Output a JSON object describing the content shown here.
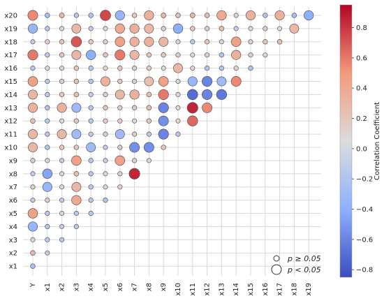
{
  "chart_data": {
    "type": "bubble-correlation-matrix",
    "variables_x": [
      "Y",
      "x1",
      "x2",
      "x3",
      "x4",
      "x5",
      "x6",
      "x7",
      "x8",
      "x9",
      "x10",
      "x11",
      "x12",
      "x13",
      "x14",
      "x15",
      "x16",
      "x17",
      "x18",
      "x19"
    ],
    "variables_y": [
      "x20",
      "x19",
      "x18",
      "x17",
      "x16",
      "x15",
      "x14",
      "x13",
      "x12",
      "x11",
      "x10",
      "x9",
      "x8",
      "x7",
      "x6",
      "x5",
      "x4",
      "x3",
      "x2",
      "x1"
    ],
    "colorbar": {
      "label": "Correlation Coefficient",
      "range": [
        -0.85,
        0.95
      ],
      "ticks": [
        0.8,
        0.6,
        0.4,
        0.2,
        0.0,
        -0.2,
        -0.4,
        -0.6,
        -0.8
      ],
      "tick_labels": [
        "0.8",
        "0.6",
        "0.4",
        "0.2",
        "0.0",
        "−0.2",
        "−0.4",
        "−0.6",
        "−0.8"
      ],
      "colormap": "coolwarm"
    },
    "legend": {
      "position": "bottom-right",
      "items": [
        {
          "label": "p ≥ 0.05",
          "size": "small"
        },
        {
          "label": "p < 0.05",
          "size": "large"
        }
      ]
    },
    "rows": {
      "x20": [
        [
          0.55,
          1
        ],
        [
          -0.25,
          0
        ],
        [
          0.3,
          0
        ],
        [
          -0.15,
          0
        ],
        [
          -0.2,
          0
        ],
        [
          0.75,
          1
        ],
        [
          -0.35,
          1
        ],
        [
          0.2,
          0
        ],
        [
          0.35,
          1
        ],
        [
          0.3,
          0
        ],
        [
          0.25,
          0
        ],
        [
          0.3,
          0
        ],
        [
          0.25,
          0
        ],
        [
          0.4,
          1
        ],
        [
          0.1,
          0
        ],
        [
          0.35,
          1
        ],
        [
          -0.2,
          0
        ],
        [
          0.35,
          1
        ],
        [
          -0.25,
          0
        ],
        [
          -0.4,
          1
        ]
      ],
      "x19": [
        [
          -0.35,
          1
        ],
        [
          -0.15,
          0
        ],
        [
          0.1,
          0
        ],
        [
          0.3,
          1
        ],
        [
          -0.1,
          0
        ],
        [
          0.1,
          0
        ],
        [
          0.4,
          1
        ],
        [
          0.35,
          1
        ],
        [
          0.3,
          1
        ],
        [
          0.15,
          0
        ],
        [
          -0.4,
          1
        ],
        [
          0.2,
          0
        ],
        [
          0.15,
          0
        ],
        [
          0.25,
          0
        ],
        [
          -0.1,
          0
        ],
        [
          0.1,
          0
        ],
        [
          0.15,
          0
        ],
        [
          0.05,
          0
        ],
        [
          0.3,
          1
        ]
      ],
      "x18": [
        [
          -0.1,
          0
        ],
        [
          0.15,
          0
        ],
        [
          0.2,
          0
        ],
        [
          0.7,
          1
        ],
        [
          0.2,
          0
        ],
        [
          0.15,
          0
        ],
        [
          0.45,
          1
        ],
        [
          0.35,
          1
        ],
        [
          0.35,
          1
        ],
        [
          0.3,
          1
        ],
        [
          0.1,
          0
        ],
        [
          -0.15,
          0
        ],
        [
          0.2,
          0
        ],
        [
          0.1,
          0
        ],
        [
          0.45,
          1
        ],
        [
          0.15,
          0
        ],
        [
          0.2,
          0
        ],
        [
          0.25,
          0
        ]
      ],
      "x17": [
        [
          0.6,
          1
        ],
        [
          -0.15,
          0
        ],
        [
          0.2,
          0
        ],
        [
          0.3,
          1
        ],
        [
          -0.4,
          1
        ],
        [
          0.2,
          0
        ],
        [
          0.6,
          1
        ],
        [
          0.3,
          1
        ],
        [
          0.2,
          0
        ],
        [
          0.2,
          0
        ],
        [
          0.15,
          0
        ],
        [
          0.1,
          0
        ],
        [
          0.15,
          0
        ],
        [
          -0.2,
          0
        ],
        [
          0.35,
          1
        ],
        [
          0.15,
          0
        ],
        [
          0.1,
          0
        ]
      ],
      "x16": [
        [
          -0.15,
          0
        ],
        [
          0.1,
          0
        ],
        [
          0.1,
          0
        ],
        [
          0.2,
          0
        ],
        [
          -0.15,
          0
        ],
        [
          0.1,
          0
        ],
        [
          0.2,
          0
        ],
        [
          0.15,
          0
        ],
        [
          0.15,
          0
        ],
        [
          0.05,
          0
        ],
        [
          0.3,
          1
        ],
        [
          0.1,
          0
        ],
        [
          -0.2,
          0
        ],
        [
          -0.15,
          0
        ],
        [
          0.1,
          0
        ],
        [
          -0.2,
          0
        ]
      ],
      "x15": [
        [
          0.45,
          1
        ],
        [
          -0.15,
          0
        ],
        [
          0.15,
          0
        ],
        [
          0.25,
          0
        ],
        [
          -0.2,
          0
        ],
        [
          0.35,
          1
        ],
        [
          0.2,
          0
        ],
        [
          0.15,
          0
        ],
        [
          0.25,
          1
        ],
        [
          0.45,
          1
        ],
        [
          0.1,
          0
        ],
        [
          -0.35,
          1
        ],
        [
          -0.6,
          1
        ],
        [
          -0.3,
          1
        ],
        [
          0.55,
          1
        ]
      ],
      "x14": [
        [
          0.3,
          1
        ],
        [
          -0.15,
          0
        ],
        [
          0.2,
          0
        ],
        [
          0.25,
          0
        ],
        [
          -0.1,
          0
        ],
        [
          0.15,
          0
        ],
        [
          0.3,
          1
        ],
        [
          0.35,
          1
        ],
        [
          0.25,
          0
        ],
        [
          0.6,
          1
        ],
        [
          0.1,
          0
        ],
        [
          -0.7,
          1
        ],
        [
          -0.6,
          1
        ],
        [
          -0.65,
          1
        ]
      ],
      "x13": [
        [
          0.35,
          1
        ],
        [
          -0.2,
          0
        ],
        [
          0.35,
          1
        ],
        [
          -0.3,
          1
        ],
        [
          -0.15,
          0
        ],
        [
          0.2,
          0
        ],
        [
          0.15,
          0
        ],
        [
          0.2,
          0
        ],
        [
          0.25,
          0
        ],
        [
          -0.6,
          1
        ],
        [
          0.05,
          0
        ],
        [
          0.85,
          1
        ],
        [
          0.55,
          1
        ]
      ],
      "x12": [
        [
          0.25,
          0
        ],
        [
          -0.15,
          0
        ],
        [
          0.1,
          0
        ],
        [
          0.2,
          0
        ],
        [
          -0.15,
          0
        ],
        [
          0.15,
          0
        ],
        [
          0.15,
          0
        ],
        [
          0.1,
          0
        ],
        [
          0.2,
          0
        ],
        [
          -0.55,
          1
        ],
        [
          0.1,
          0
        ],
        [
          0.65,
          1
        ]
      ],
      "x11": [
        [
          0.3,
          1
        ],
        [
          -0.15,
          0
        ],
        [
          0.3,
          1
        ],
        [
          -0.3,
          1
        ],
        [
          -0.1,
          0
        ],
        [
          0.15,
          0
        ],
        [
          -0.3,
          1
        ],
        [
          0.15,
          0
        ],
        [
          -0.15,
          0
        ],
        [
          -0.6,
          1
        ],
        [
          -0.15,
          0
        ]
      ],
      "x10": [
        [
          0.3,
          1
        ],
        [
          -0.2,
          0
        ],
        [
          0.2,
          0
        ],
        [
          0.2,
          0
        ],
        [
          -0.3,
          1
        ],
        [
          -0.1,
          0
        ],
        [
          0.15,
          0
        ],
        [
          -0.55,
          1
        ],
        [
          -0.55,
          1
        ],
        [
          0.2,
          0
        ]
      ],
      "x9": [
        [
          0.15,
          0
        ],
        [
          0.1,
          0
        ],
        [
          -0.1,
          0
        ],
        [
          0.45,
          1
        ],
        [
          -0.15,
          0
        ],
        [
          -0.1,
          0
        ],
        [
          0.45,
          1
        ],
        [
          0.15,
          0
        ],
        [
          0.1,
          0
        ]
      ],
      "x8": [
        [
          -0.1,
          0
        ],
        [
          -0.45,
          1
        ],
        [
          0.1,
          0
        ],
        [
          0.25,
          0
        ],
        [
          -0.15,
          0
        ],
        [
          0.1,
          0
        ],
        [
          0.15,
          0
        ],
        [
          0.85,
          1
        ]
      ],
      "x7": [
        [
          0.15,
          0
        ],
        [
          -0.35,
          1
        ],
        [
          0.1,
          0
        ],
        [
          0.3,
          1
        ],
        [
          -0.15,
          0
        ],
        [
          0.1,
          0
        ],
        [
          0.15,
          0
        ]
      ],
      "x6": [
        [
          -0.1,
          0
        ],
        [
          0.15,
          0
        ],
        [
          -0.1,
          0
        ],
        [
          0.4,
          1
        ],
        [
          -0.15,
          0
        ],
        [
          -0.2,
          0
        ]
      ],
      "x5": [
        [
          0.45,
          1
        ],
        [
          -0.15,
          0
        ],
        [
          0.1,
          0
        ],
        [
          -0.15,
          0
        ],
        [
          -0.15,
          0
        ]
      ],
      "x4": [
        [
          -0.35,
          1
        ],
        [
          -0.15,
          0
        ],
        [
          -0.1,
          0
        ],
        [
          -0.15,
          0
        ]
      ],
      "x3": [
        [
          0.1,
          0
        ],
        [
          -0.15,
          0
        ],
        [
          -0.15,
          0
        ]
      ],
      "x2": [
        [
          0.3,
          0
        ],
        [
          -0.1,
          0
        ]
      ],
      "x1": [
        [
          -0.25,
          0
        ]
      ]
    }
  }
}
